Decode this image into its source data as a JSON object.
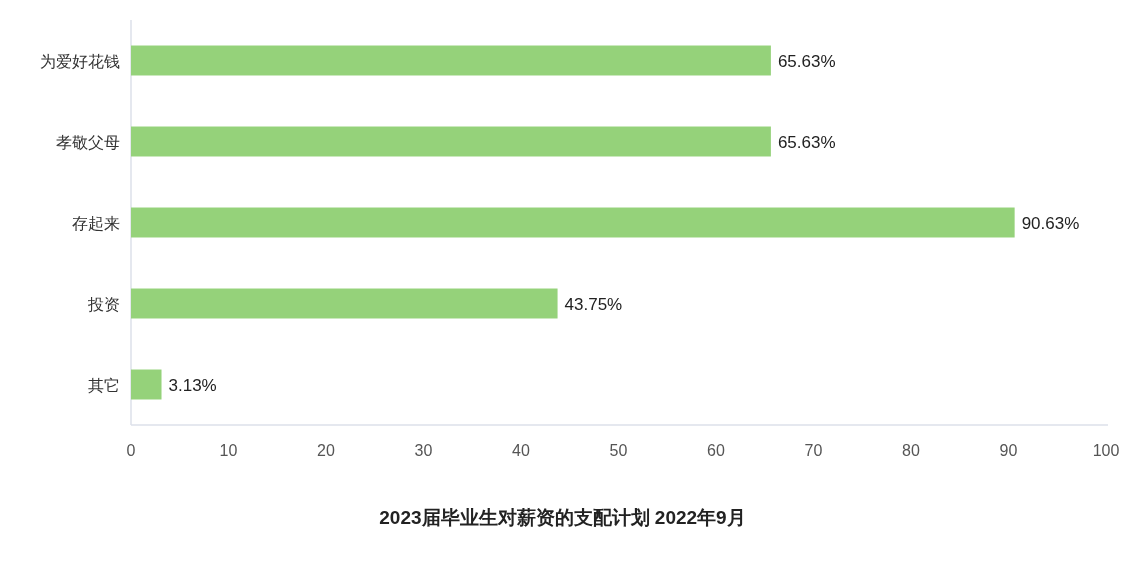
{
  "chart_data": {
    "type": "bar",
    "orientation": "horizontal",
    "title": "2023届毕业生对薪资的支配计划 2022年9月",
    "categories": [
      "为爱好花钱",
      "孝敬父母",
      "存起来",
      "投资",
      "其它"
    ],
    "values": [
      65.63,
      65.63,
      90.63,
      43.75,
      3.13
    ],
    "value_labels": [
      "65.63%",
      "65.63%",
      "90.63%",
      "43.75%",
      "3.13%"
    ],
    "color": "#95d27a",
    "xlim": [
      0,
      100
    ],
    "xticks": [
      0,
      10,
      20,
      30,
      40,
      50,
      60,
      70,
      80,
      90,
      100
    ]
  }
}
